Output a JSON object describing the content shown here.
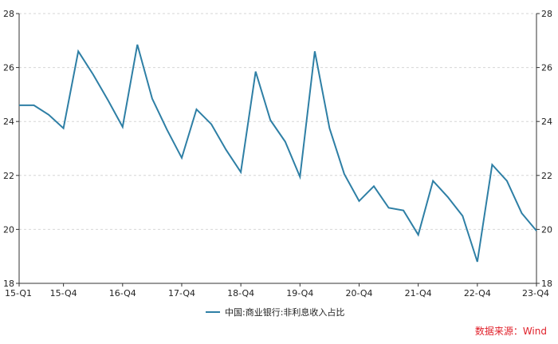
{
  "chart_data": {
    "type": "line",
    "title": "",
    "xlabel": "",
    "ylabel": "",
    "x": [
      "15-Q1",
      "15-Q2",
      "15-Q3",
      "15-Q4",
      "16-Q1",
      "16-Q2",
      "16-Q3",
      "16-Q4",
      "17-Q1",
      "17-Q2",
      "17-Q3",
      "17-Q4",
      "18-Q1",
      "18-Q2",
      "18-Q3",
      "18-Q4",
      "19-Q1",
      "19-Q2",
      "19-Q3",
      "19-Q4",
      "20-Q1",
      "20-Q2",
      "20-Q3",
      "20-Q4",
      "21-Q1",
      "21-Q2",
      "21-Q3",
      "21-Q4",
      "22-Q1",
      "22-Q2",
      "22-Q3",
      "22-Q4",
      "23-Q1",
      "23-Q2",
      "23-Q3",
      "23-Q4"
    ],
    "x_ticks": [
      "15-Q1",
      "15-Q4",
      "16-Q4",
      "17-Q4",
      "18-Q4",
      "19-Q4",
      "20-Q4",
      "21-Q4",
      "22-Q4",
      "23-Q4"
    ],
    "series": [
      {
        "name": "中国:商业银行:非利息收入占比",
        "color": "#2e7fa5",
        "values": [
          24.6,
          24.6,
          24.25,
          23.75,
          26.6,
          25.75,
          24.8,
          23.8,
          26.85,
          24.85,
          23.7,
          22.65,
          24.45,
          23.9,
          22.95,
          22.12,
          25.85,
          24.05,
          23.25,
          21.95,
          26.6,
          23.75,
          22.05,
          21.05,
          21.6,
          20.8,
          20.7,
          19.8,
          21.8,
          21.2,
          20.5,
          18.8,
          22.4,
          21.8,
          20.6,
          19.95
        ]
      }
    ],
    "ylim": [
      18,
      28
    ],
    "y_ticks": [
      18,
      20,
      22,
      24,
      26,
      28
    ],
    "grid": "horizontal dashed",
    "legend_position": "bottom-center"
  },
  "source": {
    "text": "数据来源：Wind",
    "color": "#e0202a"
  }
}
